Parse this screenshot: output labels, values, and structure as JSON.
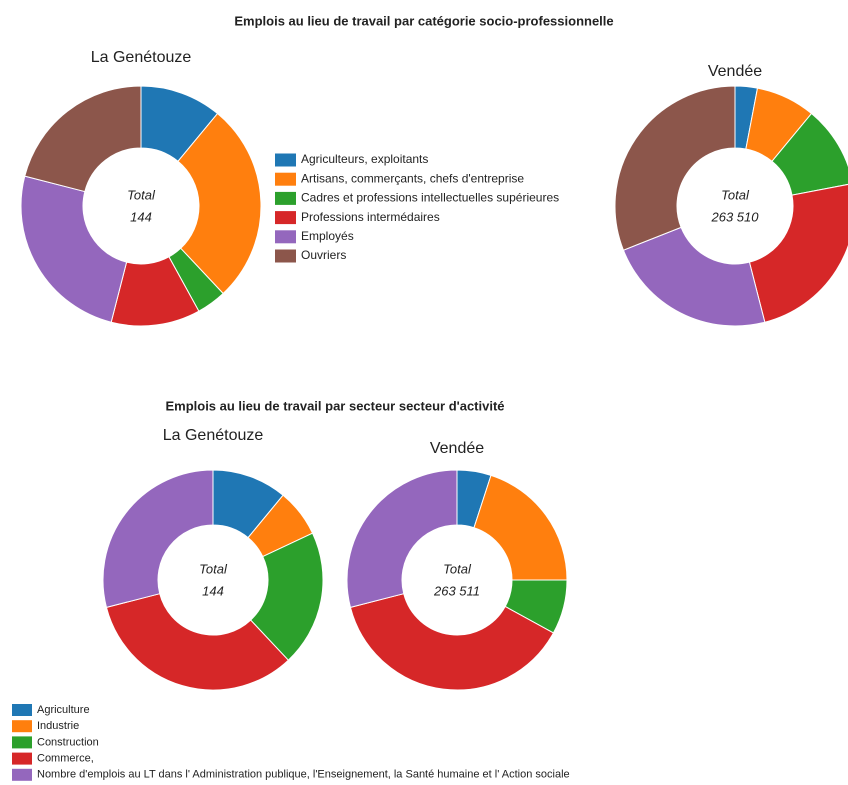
{
  "chart_data": [
    {
      "type": "donut",
      "title": "Emplois au lieu de travail par catégorie socio-professionnelle",
      "categories": [
        "Agriculteurs, exploitants",
        "Artisans, commerçants, chefs d'entreprise",
        "Cadres et professions intellectuelles supérieures",
        "Professions intermédaires",
        "Employés",
        "Ouvriers"
      ],
      "colors": [
        "#1f77b4",
        "#ff7f0e",
        "#2ca02c",
        "#d62728",
        "#9467bd",
        "#8c564b"
      ],
      "charts": [
        {
          "name": "La Genétouze",
          "total_label": "Total",
          "total": 144,
          "values": [
            11,
            27,
            4,
            12,
            25,
            21
          ]
        },
        {
          "name": "Vendée",
          "total_label": "Total",
          "total": {
            "value": 263510,
            "label": "263 510"
          },
          "values": [
            3,
            8,
            11,
            24,
            23,
            31
          ]
        }
      ]
    },
    {
      "type": "donut",
      "title": "Emplois au lieu de travail par secteur secteur d'activité",
      "categories": [
        "Agriculture",
        "Industrie",
        "Construction",
        "Commerce,",
        "Nombre d'emplois au LT dans l' Administration publique, l'Enseignement, la Santé humaine et l' Action sociale"
      ],
      "colors": [
        "#1f77b4",
        "#ff7f0e",
        "#2ca02c",
        "#d62728",
        "#9467bd"
      ],
      "charts": [
        {
          "name": "La Genétouze",
          "total_label": "Total",
          "total": 144,
          "values": [
            11,
            7,
            20,
            33,
            29
          ]
        },
        {
          "name": "Vendée",
          "total_label": "Total",
          "total": {
            "value": 263511,
            "label": "263 511"
          },
          "values": [
            5,
            20,
            8,
            38,
            29
          ]
        }
      ]
    }
  ]
}
